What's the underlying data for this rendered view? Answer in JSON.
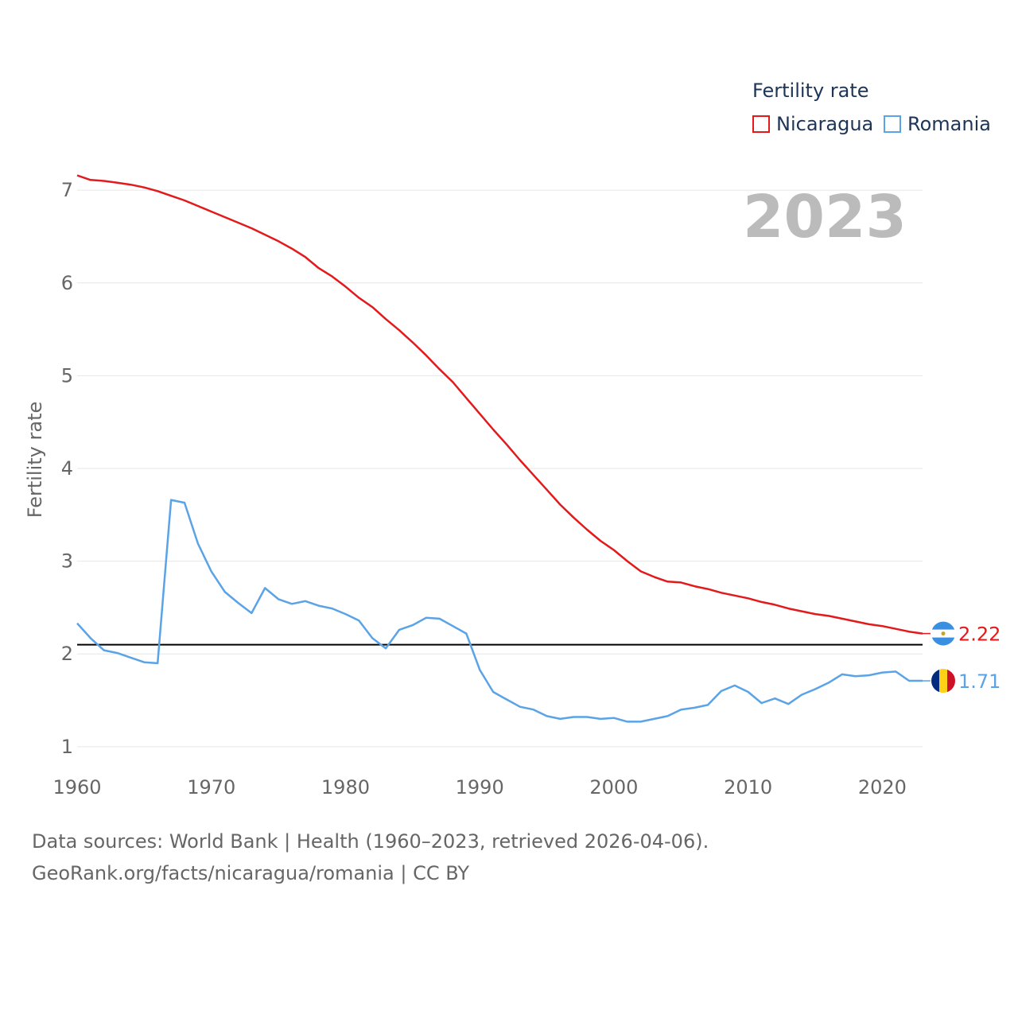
{
  "legend": {
    "title": "Fertility rate",
    "items": [
      {
        "label": "Nicaragua",
        "color": "#e31a1c"
      },
      {
        "label": "Romania",
        "color": "#5aa3e6"
      }
    ]
  },
  "year_label": "2023",
  "footer": {
    "line1": "Data sources: World Bank | Health (1960–2023, retrieved 2026-04-06).",
    "line2": "GeoRank.org/facts/nicaragua/romania | CC BY"
  },
  "chart_data": {
    "type": "line",
    "title": "Fertility rate",
    "xlabel": "",
    "ylabel": "Fertility rate",
    "xlim": [
      1960,
      2023
    ],
    "ylim": [
      0.75,
      7.25
    ],
    "xticks": [
      1960,
      1970,
      1980,
      1990,
      2000,
      2010,
      2020
    ],
    "yticks": [
      1,
      2,
      3,
      4,
      5,
      6,
      7
    ],
    "grid": true,
    "legend_position": "top-right",
    "reference_line": {
      "y": 2.1,
      "color": "#000000"
    },
    "x": [
      1960,
      1961,
      1962,
      1963,
      1964,
      1965,
      1966,
      1967,
      1968,
      1969,
      1970,
      1971,
      1972,
      1973,
      1974,
      1975,
      1976,
      1977,
      1978,
      1979,
      1980,
      1981,
      1982,
      1983,
      1984,
      1985,
      1986,
      1987,
      1988,
      1989,
      1990,
      1991,
      1992,
      1993,
      1994,
      1995,
      1996,
      1997,
      1998,
      1999,
      2000,
      2001,
      2002,
      2003,
      2004,
      2005,
      2006,
      2007,
      2008,
      2009,
      2010,
      2011,
      2012,
      2013,
      2014,
      2015,
      2016,
      2017,
      2018,
      2019,
      2020,
      2021,
      2022,
      2023
    ],
    "series": [
      {
        "name": "Nicaragua",
        "color": "#e31a1c",
        "end_label": "2.22",
        "values": [
          7.16,
          7.11,
          7.1,
          7.08,
          7.06,
          7.03,
          6.99,
          6.94,
          6.89,
          6.83,
          6.77,
          6.71,
          6.65,
          6.59,
          6.52,
          6.45,
          6.37,
          6.28,
          6.16,
          6.07,
          5.96,
          5.84,
          5.74,
          5.61,
          5.49,
          5.36,
          5.22,
          5.07,
          4.93,
          4.76,
          4.59,
          4.42,
          4.26,
          4.09,
          3.93,
          3.77,
          3.61,
          3.47,
          3.34,
          3.22,
          3.12,
          3.0,
          2.89,
          2.83,
          2.78,
          2.77,
          2.73,
          2.7,
          2.66,
          2.63,
          2.6,
          2.56,
          2.53,
          2.49,
          2.46,
          2.43,
          2.41,
          2.38,
          2.35,
          2.32,
          2.3,
          2.27,
          2.24,
          2.22
        ]
      },
      {
        "name": "Romania",
        "color": "#5aa3e6",
        "end_label": "1.71",
        "values": [
          2.33,
          2.17,
          2.04,
          2.01,
          1.96,
          1.91,
          1.9,
          3.66,
          3.63,
          3.19,
          2.89,
          2.67,
          2.55,
          2.44,
          2.71,
          2.59,
          2.54,
          2.57,
          2.52,
          2.49,
          2.43,
          2.36,
          2.17,
          2.06,
          2.26,
          2.31,
          2.39,
          2.38,
          2.3,
          2.22,
          1.83,
          1.59,
          1.51,
          1.43,
          1.4,
          1.33,
          1.3,
          1.32,
          1.32,
          1.3,
          1.31,
          1.27,
          1.27,
          1.3,
          1.33,
          1.4,
          1.42,
          1.45,
          1.6,
          1.66,
          1.59,
          1.47,
          1.52,
          1.46,
          1.56,
          1.62,
          1.69,
          1.78,
          1.76,
          1.77,
          1.8,
          1.81,
          1.71,
          1.71
        ]
      }
    ]
  }
}
